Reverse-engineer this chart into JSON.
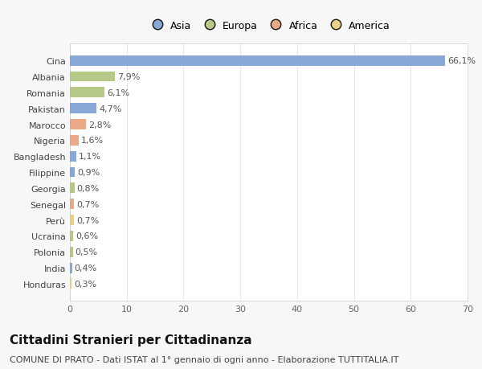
{
  "countries": [
    "Cina",
    "Albania",
    "Romania",
    "Pakistan",
    "Marocco",
    "Nigeria",
    "Bangladesh",
    "Filippine",
    "Georgia",
    "Senegal",
    "Perù",
    "Ucraina",
    "Polonia",
    "India",
    "Honduras"
  ],
  "values": [
    66.1,
    7.9,
    6.1,
    4.7,
    2.8,
    1.6,
    1.1,
    0.9,
    0.8,
    0.7,
    0.7,
    0.6,
    0.5,
    0.4,
    0.3
  ],
  "labels": [
    "66,1%",
    "7,9%",
    "6,1%",
    "4,7%",
    "2,8%",
    "1,6%",
    "1,1%",
    "0,9%",
    "0,8%",
    "0,7%",
    "0,7%",
    "0,6%",
    "0,5%",
    "0,4%",
    "0,3%"
  ],
  "continents": [
    "Asia",
    "Europa",
    "Europa",
    "Asia",
    "Africa",
    "Africa",
    "Asia",
    "Asia",
    "Europa",
    "Africa",
    "America",
    "Europa",
    "Europa",
    "Asia",
    "America"
  ],
  "continent_colors": {
    "Asia": "#7b9fd4",
    "Europa": "#b0c47a",
    "Africa": "#e8a07a",
    "America": "#e8cc7a"
  },
  "legend_order": [
    "Asia",
    "Europa",
    "Africa",
    "America"
  ],
  "title": "Cittadini Stranieri per Cittadinanza",
  "subtitle": "COMUNE DI PRATO - Dati ISTAT al 1° gennaio di ogni anno - Elaborazione TUTTITALIA.IT",
  "xlim": [
    0,
    70
  ],
  "xticks": [
    0,
    10,
    20,
    30,
    40,
    50,
    60,
    70
  ],
  "background_color": "#f7f7f7",
  "plot_bg_color": "#ffffff",
  "grid_color": "#e8e8e8",
  "title_fontsize": 11,
  "subtitle_fontsize": 8,
  "label_fontsize": 8,
  "tick_fontsize": 8,
  "legend_fontsize": 9
}
